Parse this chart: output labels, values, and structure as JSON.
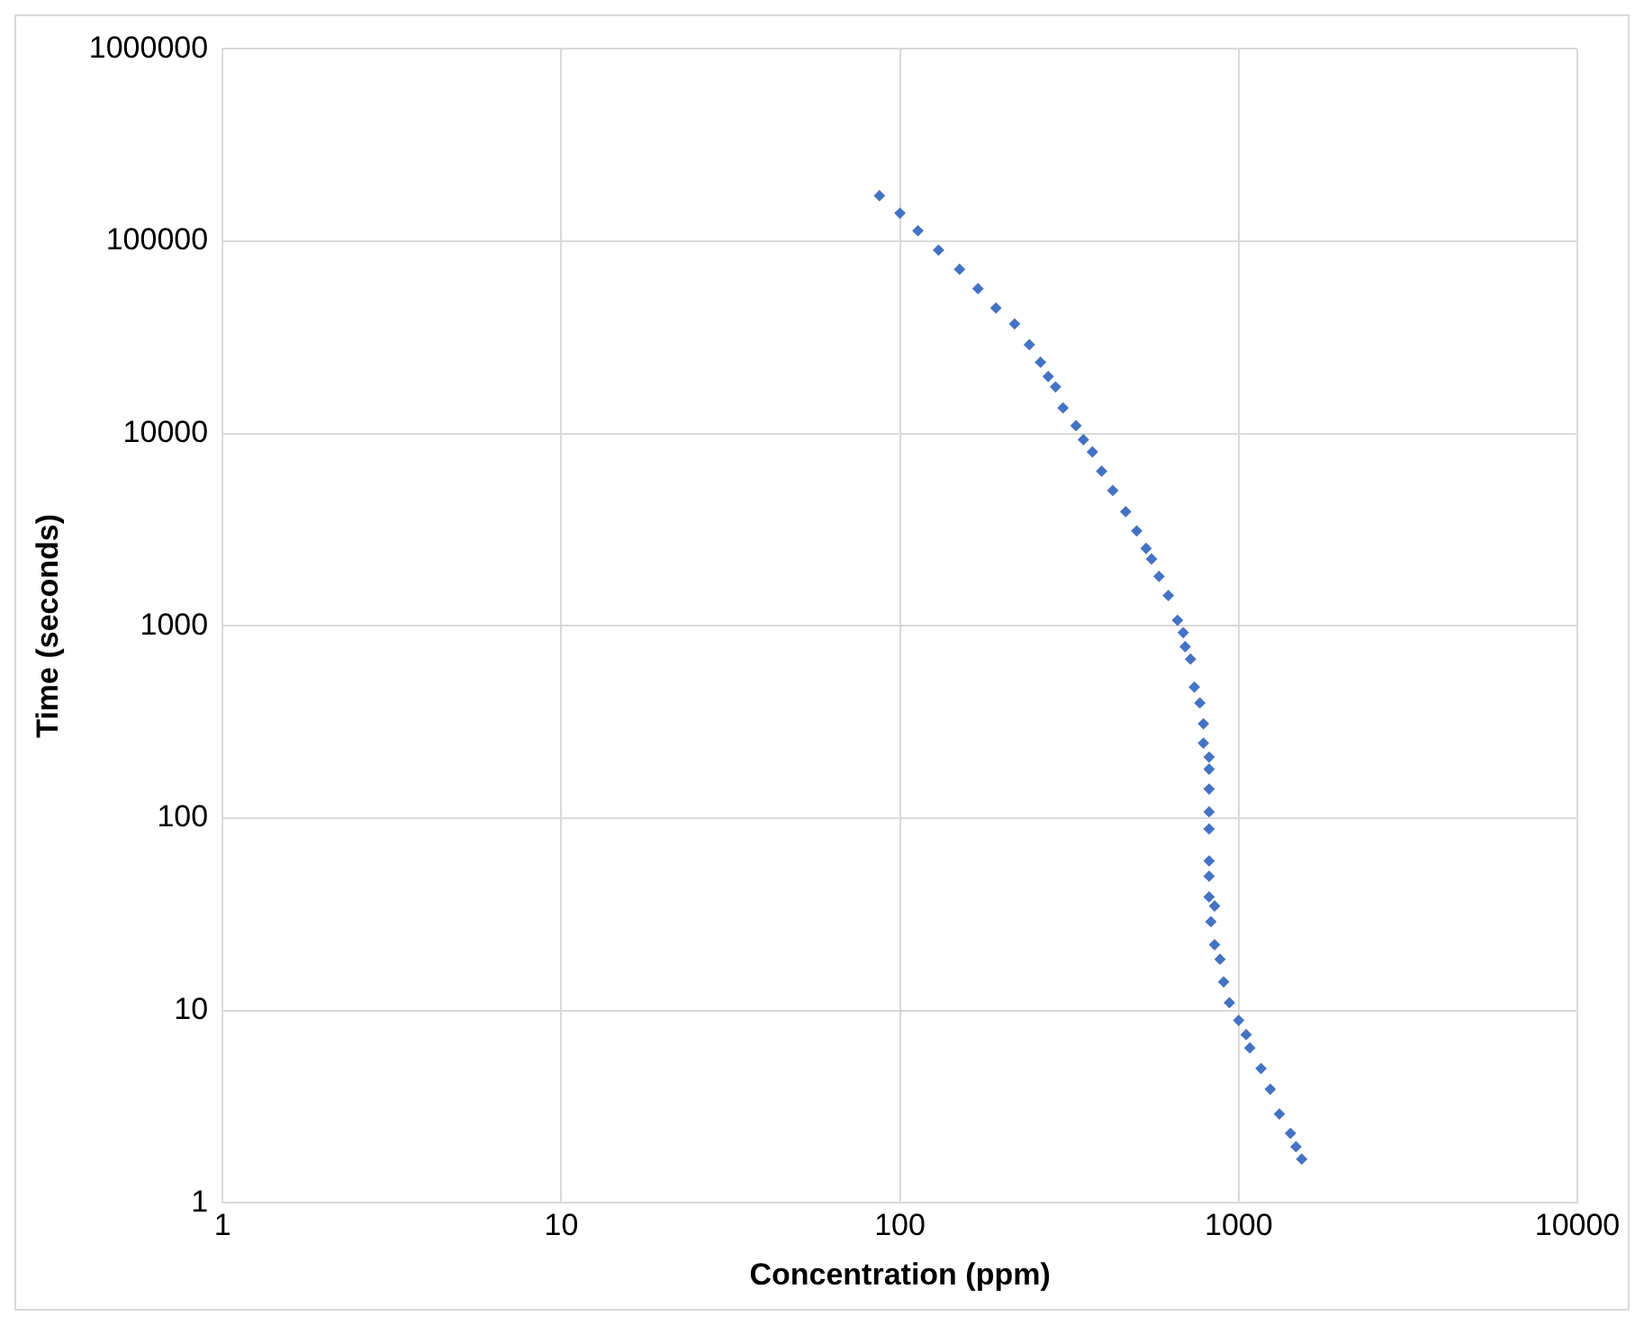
{
  "chart_data": {
    "type": "scatter",
    "xlabel": "Concentration (ppm)",
    "ylabel": "Time (seconds)",
    "log": "xy",
    "xlim": [
      1,
      10000
    ],
    "ylim": [
      1,
      1000000
    ],
    "xticks": [
      1,
      10,
      100,
      1000,
      10000
    ],
    "yticks": [
      1,
      10,
      100,
      1000,
      10000,
      100000,
      1000000
    ],
    "grid": true,
    "legend": false,
    "marker": "diamond",
    "series": [
      {
        "color": "#4472c4",
        "x": [
          87,
          100,
          113,
          130,
          150,
          170,
          192,
          218,
          241,
          260,
          274,
          288,
          303,
          331,
          348,
          370,
          394,
          425,
          464,
          500,
          533,
          553,
          582,
          620,
          660,
          686,
          695,
          721,
          740,
          768,
          787,
          787,
          818,
          818,
          818,
          818,
          818,
          818,
          818,
          818,
          849,
          828,
          849,
          881,
          903,
          939,
          1000,
          1052,
          1079,
          1164,
          1240,
          1319,
          1422,
          1476,
          1535
        ],
        "values": [
          172600,
          140000,
          113500,
          90000,
          71500,
          56700,
          45000,
          37200,
          29000,
          23500,
          19800,
          17500,
          13600,
          11000,
          9300,
          8040,
          6380,
          5060,
          3930,
          3120,
          2530,
          2230,
          1810,
          1440,
          1070,
          923,
          780,
          673,
          481,
          398,
          310,
          246,
          208,
          180,
          142,
          108,
          88,
          60,
          50,
          39,
          35,
          29,
          22,
          18.5,
          14.1,
          11,
          8.9,
          7.5,
          6.4,
          5.0,
          3.9,
          2.9,
          2.3,
          1.96,
          1.69
        ]
      }
    ]
  }
}
